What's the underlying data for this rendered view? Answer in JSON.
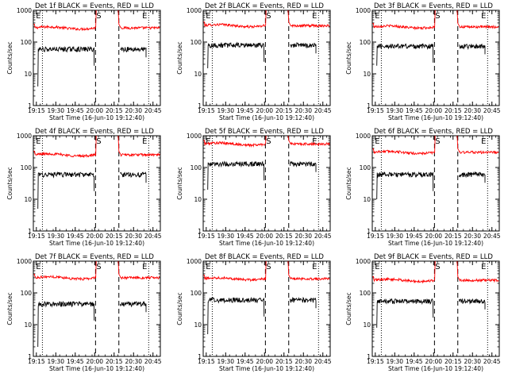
{
  "figure": {
    "xlabel": "Start Time (16-Jun-10 19:12:40)",
    "ylabel": "Counts/sec",
    "event_marker": "E",
    "saa_marker": "S",
    "x_tick_labels": [
      "19:15",
      "19:30",
      "19:45",
      "20:00",
      "20:15",
      "20:30",
      "20:45"
    ],
    "y_tick_labels": [
      "1",
      "10",
      "100",
      "1000"
    ],
    "colors": {
      "events": "#000000",
      "lld": "#ff0000",
      "axes": "#000000",
      "background": "#ffffff"
    }
  },
  "chart_data": [
    {
      "type": "line",
      "title": "Det 1f BLACK = Events, RED = LLD",
      "x_range_minutes_after_start": [
        0,
        98
      ],
      "y_scale": "log",
      "ylim": [
        1,
        1000
      ],
      "series": [
        {
          "name": "Events",
          "level": 60,
          "min_start": 4
        },
        {
          "name": "LLD",
          "level": 280,
          "spike_to": 1000
        }
      ]
    },
    {
      "type": "line",
      "title": "Det 2f BLACK = Events, RED = LLD",
      "x_range_minutes_after_start": [
        0,
        98
      ],
      "y_scale": "log",
      "ylim": [
        1,
        1000
      ],
      "series": [
        {
          "name": "Events",
          "level": 80,
          "min_start": 15
        },
        {
          "name": "LLD",
          "level": 330,
          "spike_to": 1000
        }
      ]
    },
    {
      "type": "line",
      "title": "Det 3f BLACK = Events, RED = LLD",
      "x_range_minutes_after_start": [
        0,
        98
      ],
      "y_scale": "log",
      "ylim": [
        1,
        1000
      ],
      "series": [
        {
          "name": "Events",
          "level": 75,
          "min_start": 18
        },
        {
          "name": "LLD",
          "level": 300,
          "spike_to": 1000
        }
      ]
    },
    {
      "type": "line",
      "title": "Det 4f BLACK = Events, RED = LLD",
      "x_range_minutes_after_start": [
        0,
        98
      ],
      "y_scale": "log",
      "ylim": [
        1,
        1000
      ],
      "series": [
        {
          "name": "Events",
          "level": 60,
          "min_start": 5
        },
        {
          "name": "LLD",
          "level": 250,
          "spike_to": 1000
        }
      ]
    },
    {
      "type": "line",
      "title": "Det 5f BLACK = Events, RED = LLD",
      "x_range_minutes_after_start": [
        0,
        98
      ],
      "y_scale": "log",
      "ylim": [
        1,
        1000
      ],
      "series": [
        {
          "name": "Events",
          "level": 130,
          "min_start": 20
        },
        {
          "name": "LLD",
          "level": 550,
          "spike_to": 1000
        }
      ]
    },
    {
      "type": "line",
      "title": "Det 6f BLACK = Events, RED = LLD",
      "x_range_minutes_after_start": [
        0,
        98
      ],
      "y_scale": "log",
      "ylim": [
        1,
        1000
      ],
      "series": [
        {
          "name": "Events",
          "level": 60,
          "min_start": 10
        },
        {
          "name": "LLD",
          "level": 300,
          "spike_to": 1000
        }
      ]
    },
    {
      "type": "line",
      "title": "Det 7f BLACK = Events, RED = LLD",
      "x_range_minutes_after_start": [
        0,
        98
      ],
      "y_scale": "log",
      "ylim": [
        1,
        1000
      ],
      "series": [
        {
          "name": "Events",
          "level": 45,
          "min_start": 2
        },
        {
          "name": "LLD",
          "level": 300,
          "spike_to": 1000
        }
      ]
    },
    {
      "type": "line",
      "title": "Det 8f BLACK = Events, RED = LLD",
      "x_range_minutes_after_start": [
        0,
        98
      ],
      "y_scale": "log",
      "ylim": [
        1,
        1000
      ],
      "series": [
        {
          "name": "Events",
          "level": 60,
          "min_start": 5
        },
        {
          "name": "LLD",
          "level": 280,
          "spike_to": 1000
        }
      ]
    },
    {
      "type": "line",
      "title": "Det 9f BLACK = Events, RED = LLD",
      "x_range_minutes_after_start": [
        0,
        98
      ],
      "y_scale": "log",
      "ylim": [
        1,
        1000
      ],
      "series": [
        {
          "name": "Events",
          "level": 55,
          "min_start": 8
        },
        {
          "name": "LLD",
          "level": 250,
          "spike_to": 1000
        }
      ]
    }
  ]
}
